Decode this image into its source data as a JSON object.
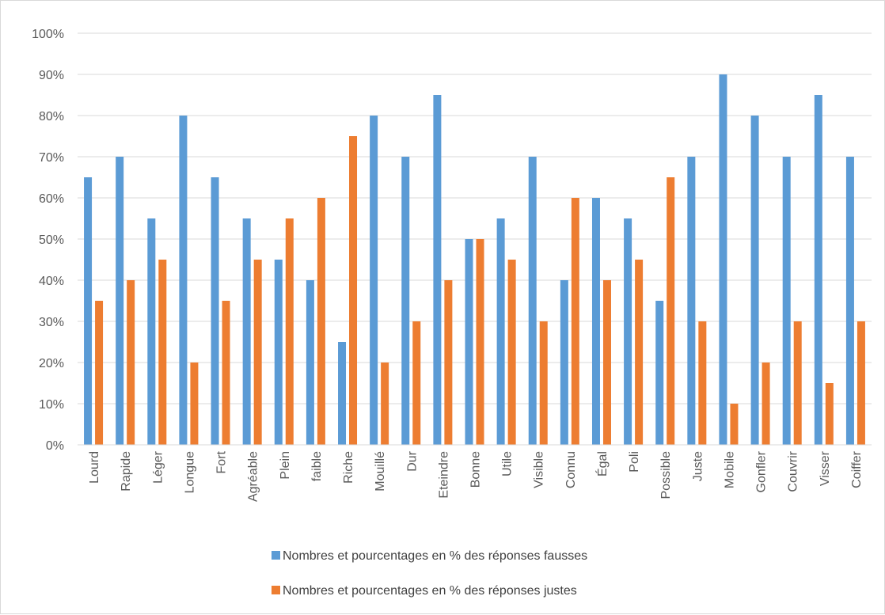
{
  "chart_data": {
    "type": "bar",
    "categories": [
      "Lourd",
      "Rapide",
      "Léger",
      "Longue",
      "Fort",
      "Agréable",
      "Plein",
      "faible",
      "Riche",
      "Mouillé",
      "Dur",
      "Eteindre",
      "Bonne",
      "Utile",
      "Visible",
      "Connu",
      "Égal",
      "Poli",
      "Possible",
      "Juste",
      "Mobile",
      "Gonfler",
      "Couvrir",
      "Visser",
      "Coiffer"
    ],
    "series": [
      {
        "name": "Nombres et pourcentages en % des réponses fausses",
        "color": "#5b9bd5",
        "values": [
          65,
          70,
          55,
          80,
          65,
          55,
          45,
          40,
          25,
          80,
          70,
          85,
          50,
          55,
          70,
          40,
          60,
          55,
          35,
          70,
          90,
          80,
          70,
          85,
          70
        ]
      },
      {
        "name": "Nombres et pourcentages en % des réponses justes",
        "color": "#ed7d31",
        "values": [
          35,
          40,
          45,
          20,
          35,
          45,
          55,
          60,
          75,
          20,
          30,
          40,
          50,
          45,
          30,
          60,
          40,
          45,
          65,
          30,
          10,
          20,
          30,
          15,
          30
        ]
      }
    ],
    "y_ticks": [
      "0%",
      "10%",
      "20%",
      "30%",
      "40%",
      "50%",
      "60%",
      "70%",
      "80%",
      "90%",
      "100%"
    ],
    "ylim": [
      0,
      100
    ],
    "grid": true,
    "legend_position": "bottom",
    "gridline_color": "#d9d9d9"
  }
}
